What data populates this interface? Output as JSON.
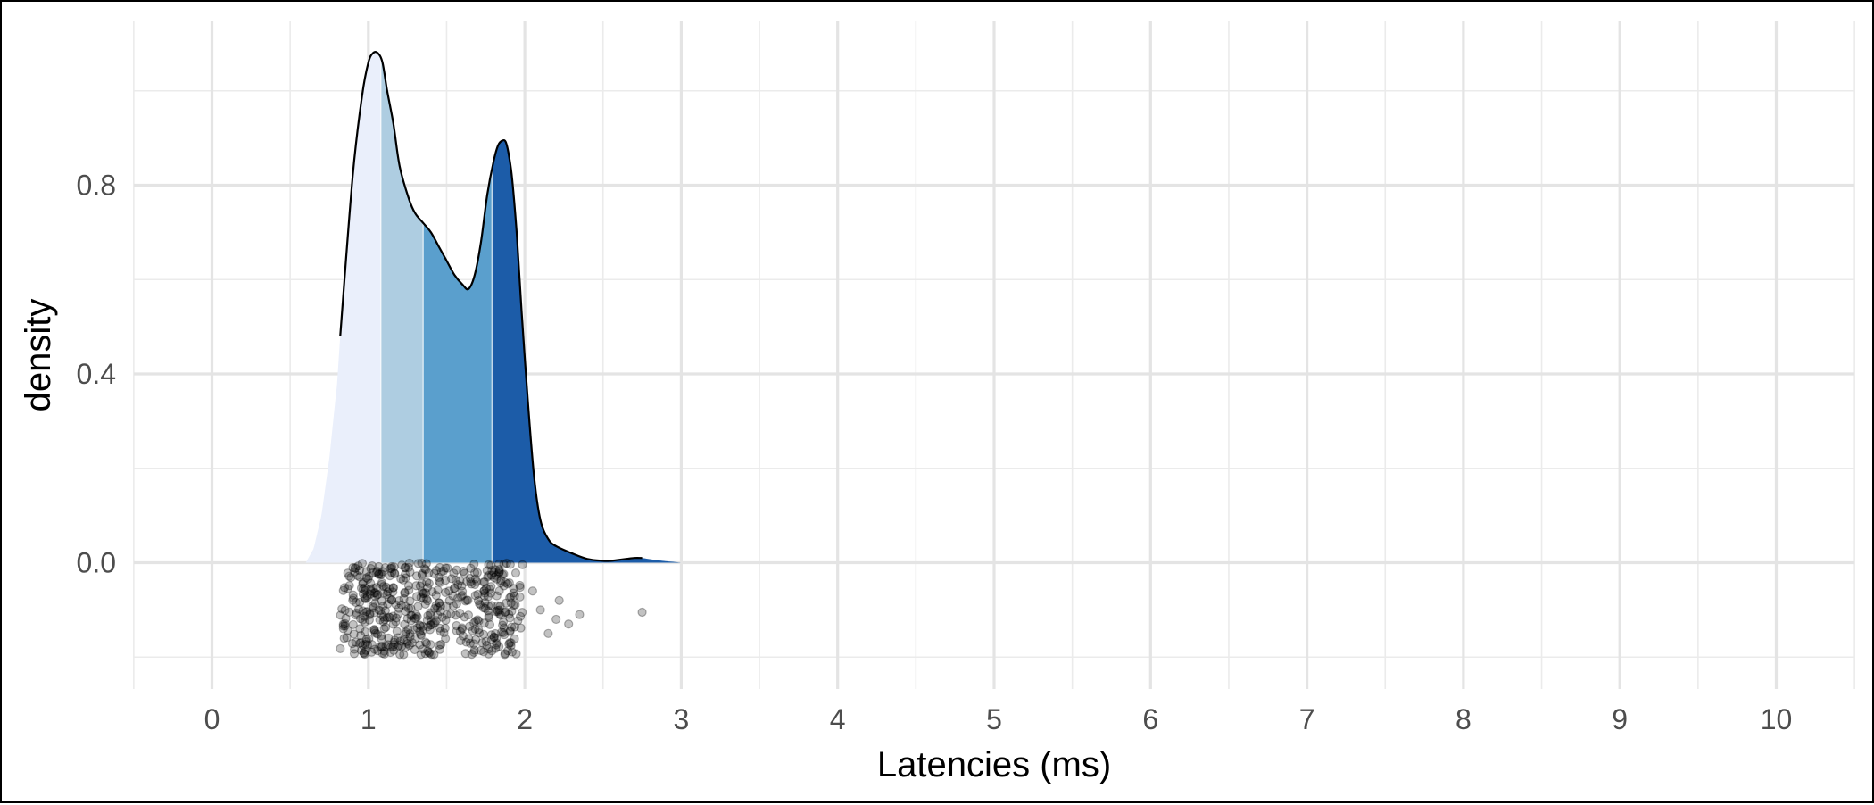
{
  "chart_data": {
    "type": "area",
    "subtype": "density ridgeline with quantile-shaded bands and jittered raw points",
    "title": "",
    "xlabel": "Latencies (ms)",
    "ylabel": "density",
    "xlim": [
      -0.5,
      10.5
    ],
    "ylim": [
      -0.2,
      1.15
    ],
    "x_ticks": [
      0,
      1,
      2,
      3,
      4,
      5,
      6,
      7,
      8,
      9,
      10
    ],
    "x_tick_labels": [
      "0",
      "1",
      "2",
      "3",
      "4",
      "5",
      "6",
      "7",
      "8",
      "9",
      "10"
    ],
    "y_ticks": [
      0.0,
      0.4,
      0.8
    ],
    "y_tick_labels": [
      "0.0",
      "0.4",
      "0.8"
    ],
    "grid": true,
    "legend": "none",
    "density_curve": {
      "x": [
        0.82,
        0.9,
        0.96,
        1.0,
        1.03,
        1.06,
        1.09,
        1.12,
        1.16,
        1.2,
        1.26,
        1.3,
        1.35,
        1.4,
        1.45,
        1.5,
        1.55,
        1.6,
        1.64,
        1.68,
        1.72,
        1.76,
        1.8,
        1.83,
        1.86,
        1.88,
        1.9,
        1.92,
        1.95,
        1.98,
        2.02,
        2.06,
        2.1,
        2.15,
        2.2,
        2.3,
        2.4,
        2.5,
        2.55,
        2.6,
        2.65,
        2.7,
        2.75
      ],
      "y": [
        0.48,
        0.82,
        0.99,
        1.06,
        1.08,
        1.08,
        1.06,
        1.0,
        0.93,
        0.84,
        0.77,
        0.74,
        0.72,
        0.7,
        0.67,
        0.64,
        0.61,
        0.59,
        0.58,
        0.61,
        0.68,
        0.78,
        0.85,
        0.885,
        0.895,
        0.89,
        0.86,
        0.81,
        0.69,
        0.53,
        0.34,
        0.18,
        0.09,
        0.05,
        0.035,
        0.02,
        0.008,
        0.004,
        0.004,
        0.006,
        0.008,
        0.01,
        0.01
      ]
    },
    "fill_tails": {
      "left": {
        "x": [
          0.6,
          0.65,
          0.7,
          0.75,
          0.8,
          0.82
        ],
        "y": [
          0.0,
          0.03,
          0.1,
          0.22,
          0.38,
          0.48
        ]
      },
      "right": {
        "x": [
          2.75,
          2.85,
          3.0
        ],
        "y": [
          0.01,
          0.005,
          0.0
        ]
      }
    },
    "bands": [
      {
        "from": 0.6,
        "to": 1.08,
        "color": "#eaeffb"
      },
      {
        "from": 1.08,
        "to": 1.35,
        "color": "#aecde1"
      },
      {
        "from": 1.35,
        "to": 1.79,
        "color": "#5a9fcd"
      },
      {
        "from": 1.79,
        "to": 3.0,
        "color": "#1c5ca8"
      }
    ],
    "points": {
      "count": 520,
      "x_range_dense": [
        0.82,
        2.0
      ],
      "y_range": [
        -0.195,
        0.0
      ],
      "outliers": [
        {
          "x": 2.05,
          "y": -0.06
        },
        {
          "x": 2.1,
          "y": -0.1
        },
        {
          "x": 2.15,
          "y": -0.15
        },
        {
          "x": 2.2,
          "y": -0.12
        },
        {
          "x": 2.22,
          "y": -0.08
        },
        {
          "x": 2.28,
          "y": -0.13
        },
        {
          "x": 2.35,
          "y": -0.11
        },
        {
          "x": 2.75,
          "y": -0.105
        }
      ],
      "color": "#000000",
      "opacity": 0.3
    }
  }
}
